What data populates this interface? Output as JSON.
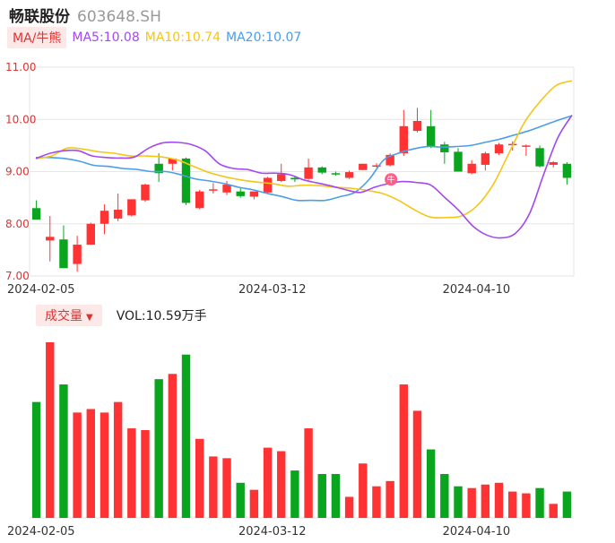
{
  "header": {
    "name": "畅联股份",
    "code": "603648.SH"
  },
  "ma_legend": {
    "button_label": "MA/牛熊",
    "items": [
      {
        "label": "MA5:10.08",
        "color": "#a349f0"
      },
      {
        "label": "MA10:10.74",
        "color": "#f5c518"
      },
      {
        "label": "MA20:10.07",
        "color": "#4a9eea"
      }
    ]
  },
  "volume_legend": {
    "button_label": "成交量",
    "caret": "▼",
    "vol_text": "VOL:10.59万手"
  },
  "colors": {
    "up": "#ff3333",
    "down": "#0aa51e",
    "grid": "#e6e6e6",
    "axis_text": "#e03131"
  },
  "badge": {
    "text": "牛"
  },
  "chart_data": {
    "type": "candlestick",
    "y_ticks": [
      "11.00",
      "10.00",
      "9.00",
      "8.00",
      "7.00"
    ],
    "ylim": [
      7.0,
      11.0
    ],
    "x_tick_labels": [
      {
        "index": 1,
        "label": "2024-02-05"
      },
      {
        "index": 18,
        "label": "2024-03-12"
      },
      {
        "index": 33,
        "label": "2024-04-10"
      }
    ],
    "candles": [
      {
        "o": 8.3,
        "h": 8.45,
        "l": 8.08,
        "c": 8.08
      },
      {
        "o": 7.68,
        "h": 8.15,
        "l": 7.28,
        "c": 7.75
      },
      {
        "o": 7.7,
        "h": 7.97,
        "l": 7.15,
        "c": 7.15
      },
      {
        "o": 7.23,
        "h": 7.77,
        "l": 7.08,
        "c": 7.6
      },
      {
        "o": 7.6,
        "h": 8.02,
        "l": 7.6,
        "c": 8.0
      },
      {
        "o": 8.0,
        "h": 8.37,
        "l": 7.8,
        "c": 8.25
      },
      {
        "o": 8.1,
        "h": 8.58,
        "l": 8.05,
        "c": 8.27
      },
      {
        "o": 8.16,
        "h": 8.47,
        "l": 8.14,
        "c": 8.47
      },
      {
        "o": 8.45,
        "h": 8.77,
        "l": 8.42,
        "c": 8.75
      },
      {
        "o": 9.15,
        "h": 9.35,
        "l": 8.8,
        "c": 8.97
      },
      {
        "o": 9.15,
        "h": 9.25,
        "l": 9.02,
        "c": 9.25
      },
      {
        "o": 9.25,
        "h": 9.27,
        "l": 8.36,
        "c": 8.4
      },
      {
        "o": 8.3,
        "h": 8.65,
        "l": 8.28,
        "c": 8.62
      },
      {
        "o": 8.64,
        "h": 8.78,
        "l": 8.58,
        "c": 8.66
      },
      {
        "o": 8.6,
        "h": 8.82,
        "l": 8.55,
        "c": 8.75
      },
      {
        "o": 8.62,
        "h": 8.7,
        "l": 8.5,
        "c": 8.53
      },
      {
        "o": 8.52,
        "h": 8.62,
        "l": 8.47,
        "c": 8.62
      },
      {
        "o": 8.6,
        "h": 8.9,
        "l": 8.58,
        "c": 8.88
      },
      {
        "o": 8.82,
        "h": 9.15,
        "l": 8.8,
        "c": 8.95
      },
      {
        "o": 8.88,
        "h": 8.92,
        "l": 8.8,
        "c": 8.85
      },
      {
        "o": 8.86,
        "h": 9.25,
        "l": 8.84,
        "c": 9.08
      },
      {
        "o": 9.08,
        "h": 9.1,
        "l": 8.95,
        "c": 8.98
      },
      {
        "o": 8.97,
        "h": 9.0,
        "l": 8.92,
        "c": 8.95
      },
      {
        "o": 8.88,
        "h": 9.02,
        "l": 8.86,
        "c": 8.99
      },
      {
        "o": 9.03,
        "h": 9.15,
        "l": 9.03,
        "c": 9.15
      },
      {
        "o": 9.1,
        "h": 9.16,
        "l": 9.08,
        "c": 9.12
      },
      {
        "o": 9.12,
        "h": 9.35,
        "l": 9.1,
        "c": 9.32
      },
      {
        "o": 9.35,
        "h": 10.18,
        "l": 9.3,
        "c": 9.87
      },
      {
        "o": 9.78,
        "h": 10.22,
        "l": 9.75,
        "c": 9.97
      },
      {
        "o": 9.87,
        "h": 10.18,
        "l": 9.45,
        "c": 9.47
      },
      {
        "o": 9.52,
        "h": 9.57,
        "l": 9.15,
        "c": 9.37
      },
      {
        "o": 9.38,
        "h": 9.45,
        "l": 9.0,
        "c": 9.0
      },
      {
        "o": 8.97,
        "h": 9.22,
        "l": 8.95,
        "c": 9.15
      },
      {
        "o": 9.13,
        "h": 9.38,
        "l": 9.02,
        "c": 9.35
      },
      {
        "o": 9.35,
        "h": 9.55,
        "l": 9.32,
        "c": 9.52
      },
      {
        "o": 9.52,
        "h": 9.58,
        "l": 9.4,
        "c": 9.53
      },
      {
        "o": 9.5,
        "h": 9.52,
        "l": 9.3,
        "c": 9.5
      },
      {
        "o": 9.45,
        "h": 9.5,
        "l": 9.08,
        "c": 9.1
      },
      {
        "o": 9.13,
        "h": 9.2,
        "l": 9.08,
        "c": 9.18
      },
      {
        "o": 9.15,
        "h": 9.18,
        "l": 8.75,
        "c": 8.88
      }
    ],
    "ma5": [
      9.25,
      9.35,
      9.4,
      9.4,
      9.3,
      9.27,
      9.26,
      9.28,
      9.45,
      9.55,
      9.56,
      9.52,
      9.4,
      9.15,
      9.06,
      9.04,
      8.97,
      8.97,
      8.94,
      8.84,
      8.78,
      8.72,
      8.65,
      8.6,
      8.7,
      8.77,
      8.81,
      8.79,
      8.74,
      8.5,
      8.25,
      7.95,
      7.78,
      7.73,
      7.82,
      8.2,
      8.95,
      9.65,
      10.08
    ],
    "ma10": [
      9.25,
      9.3,
      9.45,
      9.43,
      9.38,
      9.35,
      9.3,
      9.3,
      9.28,
      9.22,
      9.1,
      8.98,
      8.9,
      8.84,
      8.8,
      8.77,
      8.72,
      8.74,
      8.73,
      8.7,
      8.68,
      8.64,
      8.58,
      8.45,
      8.27,
      8.13,
      8.12,
      8.15,
      8.35,
      8.75,
      9.35,
      9.95,
      10.35,
      10.65,
      10.74
    ],
    "ma20": [
      9.27,
      9.27,
      9.25,
      9.2,
      9.12,
      9.1,
      9.06,
      9.04,
      9.0,
      9.0,
      8.94,
      8.86,
      8.82,
      8.77,
      8.7,
      8.65,
      8.58,
      8.52,
      8.45,
      8.45,
      8.45,
      8.52,
      8.6,
      8.85,
      9.22,
      9.35,
      9.43,
      9.48,
      9.47,
      9.48,
      9.5,
      9.56,
      9.62,
      9.7,
      9.78,
      9.88,
      9.98,
      10.07
    ],
    "volume": [
      0.66,
      1.0,
      0.76,
      0.6,
      0.62,
      0.6,
      0.66,
      0.51,
      0.5,
      0.79,
      0.82,
      0.93,
      0.45,
      0.35,
      0.34,
      0.2,
      0.16,
      0.4,
      0.38,
      0.27,
      0.51,
      0.25,
      0.25,
      0.12,
      0.31,
      0.18,
      0.21,
      0.76,
      0.61,
      0.39,
      0.25,
      0.18,
      0.17,
      0.19,
      0.2,
      0.15,
      0.14,
      0.17,
      0.08,
      0.15
    ]
  }
}
